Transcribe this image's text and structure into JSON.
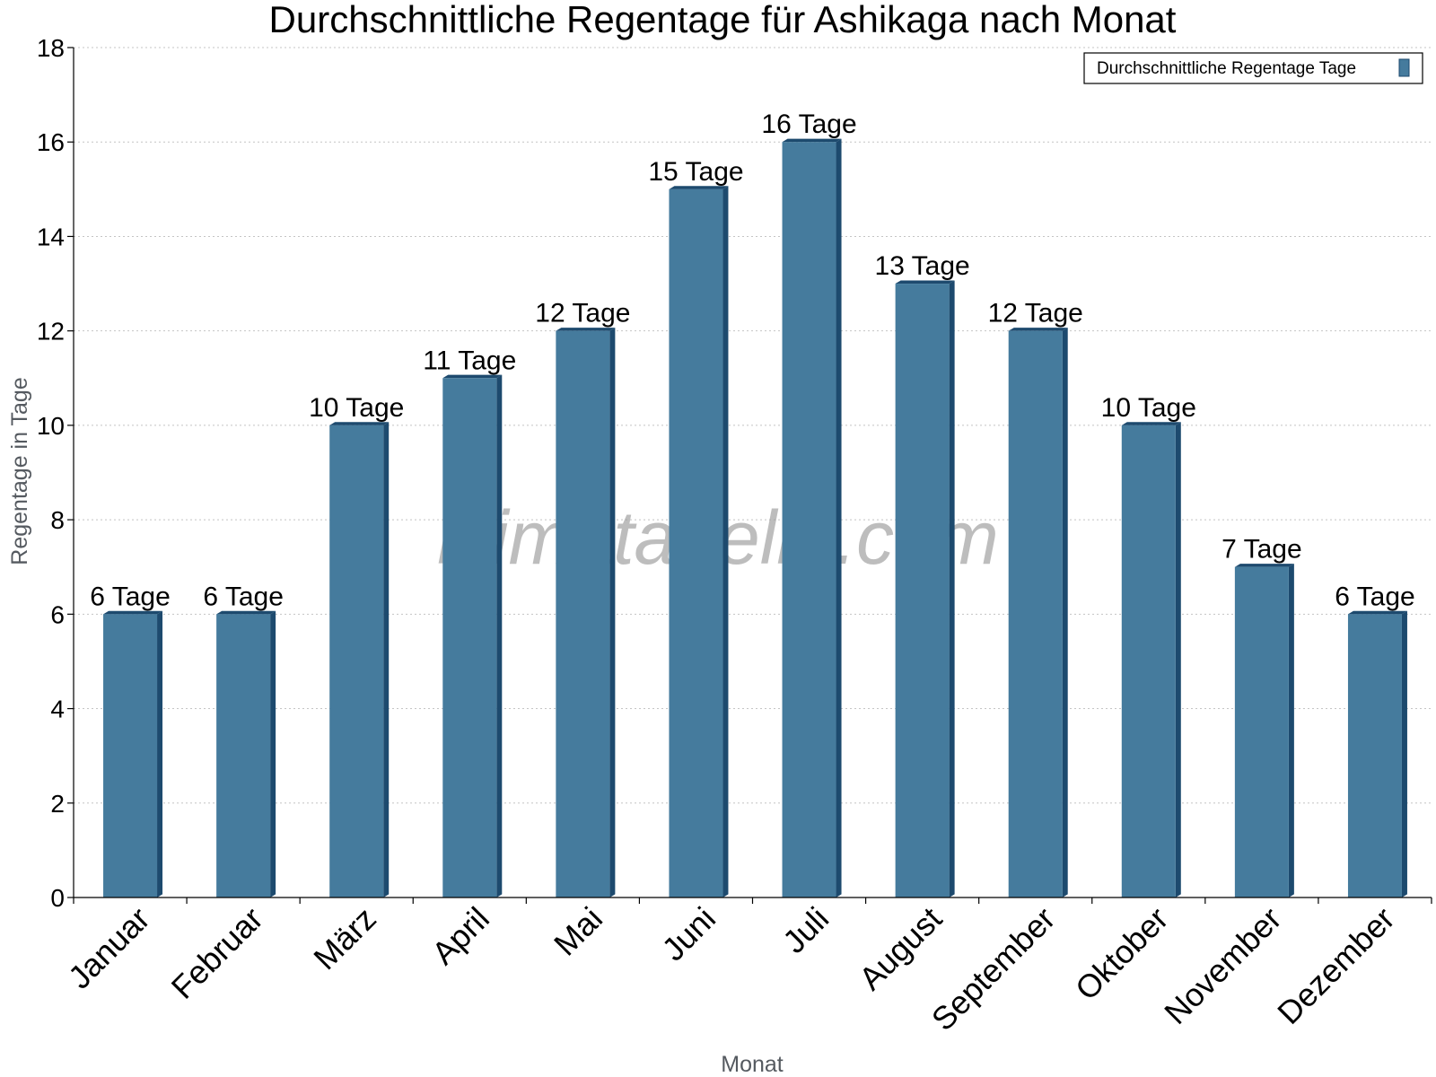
{
  "chart_data": {
    "type": "bar",
    "title": "Durchschnittliche Regentage für Ashikaga nach Monat",
    "xlabel": "Monat",
    "ylabel": "Regentage in Tage",
    "ylim": [
      0,
      18
    ],
    "yticks": [
      0,
      2,
      4,
      6,
      8,
      10,
      12,
      14,
      16,
      18
    ],
    "grid": true,
    "legend_position": "top-right",
    "categories": [
      "Januar",
      "Februar",
      "März",
      "April",
      "Mai",
      "Juni",
      "Juli",
      "August",
      "September",
      "Oktober",
      "November",
      "Dezember"
    ],
    "series": [
      {
        "name": "Durchschnittliche Regentage Tage",
        "values": [
          6,
          6,
          10,
          11,
          12,
          15,
          16,
          13,
          12,
          10,
          7,
          6
        ],
        "labels": [
          "6 Tage",
          "6 Tage",
          "10 Tage",
          "11 Tage",
          "12 Tage",
          "15 Tage",
          "16 Tage",
          "13 Tage",
          "12 Tage",
          "10 Tage",
          "7 Tage",
          "6 Tage"
        ],
        "color": "#457b9d",
        "shade_color": "#1d4a6e"
      }
    ]
  },
  "watermark": "klimatabelle.com"
}
